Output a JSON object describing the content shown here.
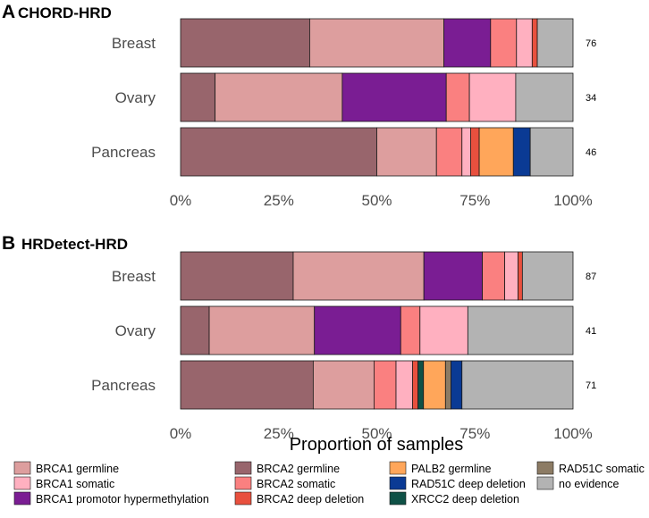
{
  "chart_data": {
    "type": "bar",
    "orientation": "horizontal",
    "stacked": true,
    "xlabel": "Proportion of samples",
    "xlim": [
      0,
      1
    ],
    "x_ticks": [
      "0%",
      "25%",
      "50%",
      "75%",
      "100%"
    ],
    "categories": [
      {
        "key": "brca1_germ",
        "label": "BRCA1 germline",
        "color": "#DD9E9E"
      },
      {
        "key": "brca1_som",
        "label": "BRCA1 somatic",
        "color": "#FFB0C0"
      },
      {
        "key": "brca1_meth",
        "label": "BRCA1 promotor hypermethylation",
        "color": "#7A1D93"
      },
      {
        "key": "brca2_germ",
        "label": "BRCA2 germline",
        "color": "#98656C"
      },
      {
        "key": "brca2_som",
        "label": "BRCA2 somatic",
        "color": "#FA8080"
      },
      {
        "key": "brca2_del",
        "label": "BRCA2 deep deletion",
        "color": "#E8503E"
      },
      {
        "key": "palb2_germ",
        "label": "PALB2 germline",
        "color": "#FFA65A"
      },
      {
        "key": "rad51c_del",
        "label": "RAD51C deep deletion",
        "color": "#0A3A94"
      },
      {
        "key": "xrcc2_del",
        "label": "XRCC2 deep deletion",
        "color": "#0F5146"
      },
      {
        "key": "rad51c_som",
        "label": "RAD51C somatic",
        "color": "#8C7B64"
      },
      {
        "key": "none",
        "label": "no evidence",
        "color": "#B3B3B3"
      }
    ],
    "panels": [
      {
        "letter": "A",
        "title": "CHORD-HRD",
        "rows": [
          {
            "label": "Breast",
            "n": "76",
            "segments": [
              {
                "key": "brca2_germ",
                "value": 0.329
              },
              {
                "key": "brca1_germ",
                "value": 0.342
              },
              {
                "key": "brca1_meth",
                "value": 0.119
              },
              {
                "key": "brca2_som",
                "value": 0.066
              },
              {
                "key": "brca1_som",
                "value": 0.04
              },
              {
                "key": "brca2_del",
                "value": 0.013
              },
              {
                "key": "none",
                "value": 0.091
              }
            ]
          },
          {
            "label": "Ovary",
            "n": "34",
            "segments": [
              {
                "key": "brca2_germ",
                "value": 0.088
              },
              {
                "key": "brca1_germ",
                "value": 0.324
              },
              {
                "key": "brca1_meth",
                "value": 0.265
              },
              {
                "key": "brca2_som",
                "value": 0.059
              },
              {
                "key": "brca1_som",
                "value": 0.118
              },
              {
                "key": "none",
                "value": 0.146
              }
            ]
          },
          {
            "label": "Pancreas",
            "n": "46",
            "segments": [
              {
                "key": "brca2_germ",
                "value": 0.5
              },
              {
                "key": "brca1_germ",
                "value": 0.152
              },
              {
                "key": "brca2_som",
                "value": 0.065
              },
              {
                "key": "brca1_som",
                "value": 0.022
              },
              {
                "key": "brca2_del",
                "value": 0.022
              },
              {
                "key": "palb2_germ",
                "value": 0.087
              },
              {
                "key": "rad51c_del",
                "value": 0.043
              },
              {
                "key": "none",
                "value": 0.109
              }
            ]
          }
        ]
      },
      {
        "letter": "B",
        "title": "HRDetect-HRD",
        "rows": [
          {
            "label": "Breast",
            "n": "87",
            "segments": [
              {
                "key": "brca2_germ",
                "value": 0.287
              },
              {
                "key": "brca1_germ",
                "value": 0.333
              },
              {
                "key": "brca1_meth",
                "value": 0.149
              },
              {
                "key": "brca2_som",
                "value": 0.057
              },
              {
                "key": "brca1_som",
                "value": 0.034
              },
              {
                "key": "brca2_del",
                "value": 0.011
              },
              {
                "key": "none",
                "value": 0.129
              }
            ]
          },
          {
            "label": "Ovary",
            "n": "41",
            "segments": [
              {
                "key": "brca2_germ",
                "value": 0.073
              },
              {
                "key": "brca1_germ",
                "value": 0.268
              },
              {
                "key": "brca1_meth",
                "value": 0.22
              },
              {
                "key": "brca2_som",
                "value": 0.049
              },
              {
                "key": "brca1_som",
                "value": 0.122
              },
              {
                "key": "none",
                "value": 0.268
              }
            ]
          },
          {
            "label": "Pancreas",
            "n": "71",
            "segments": [
              {
                "key": "brca2_germ",
                "value": 0.338
              },
              {
                "key": "brca1_germ",
                "value": 0.155
              },
              {
                "key": "brca2_som",
                "value": 0.056
              },
              {
                "key": "brca1_som",
                "value": 0.042
              },
              {
                "key": "brca2_del",
                "value": 0.014
              },
              {
                "key": "xrcc2_del",
                "value": 0.014
              },
              {
                "key": "palb2_germ",
                "value": 0.056
              },
              {
                "key": "rad51c_som",
                "value": 0.014
              },
              {
                "key": "rad51c_del",
                "value": 0.028
              },
              {
                "key": "none",
                "value": 0.283
              }
            ]
          }
        ]
      }
    ]
  }
}
